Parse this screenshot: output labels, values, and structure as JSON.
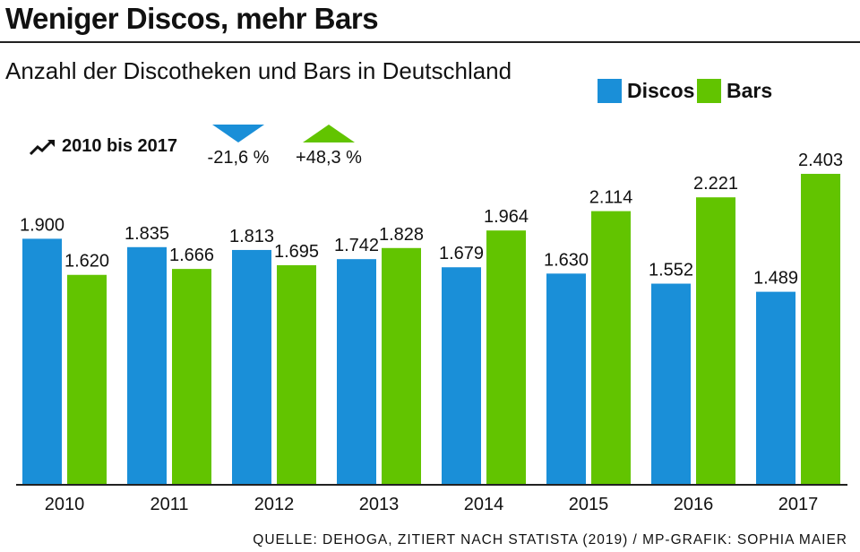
{
  "title": "Weniger Discos, mehr Bars",
  "subtitle": "Anzahl der Discotheken und Bars in Deutschland",
  "legend": {
    "discos": "Discos",
    "bars": "Bars"
  },
  "period": {
    "label": "2010 bis 2017",
    "icon": "trend-icon"
  },
  "changes": {
    "discos": {
      "value": "-21,6 %",
      "direction": "down"
    },
    "bars": {
      "value": "+48,3 %",
      "direction": "up"
    }
  },
  "source": "QUELLE: DEHOGA, ZITIERT NACH STATISTA (2019) / MP-GRAFIK: SOPHIA MAIER",
  "colors": {
    "discos": "#1a8fd8",
    "bars": "#62c400"
  },
  "chart_data": {
    "type": "bar",
    "categories": [
      "2010",
      "2011",
      "2012",
      "2013",
      "2014",
      "2015",
      "2016",
      "2017"
    ],
    "series": [
      {
        "name": "Discos",
        "values": [
          1900,
          1835,
          1813,
          1742,
          1679,
          1630,
          1552,
          1489
        ],
        "labels": [
          "1.900",
          "1.835",
          "1.813",
          "1.742",
          "1.679",
          "1.630",
          "1.552",
          "1.489"
        ]
      },
      {
        "name": "Bars",
        "values": [
          1620,
          1666,
          1695,
          1828,
          1964,
          2114,
          2221,
          2403
        ],
        "labels": [
          "1.620",
          "1.666",
          "1.695",
          "1.828",
          "1.964",
          "2.114",
          "2.221",
          "2.403"
        ]
      }
    ],
    "ylim": [
      0,
      2403
    ],
    "grid": false,
    "legend_position": "top-right"
  }
}
